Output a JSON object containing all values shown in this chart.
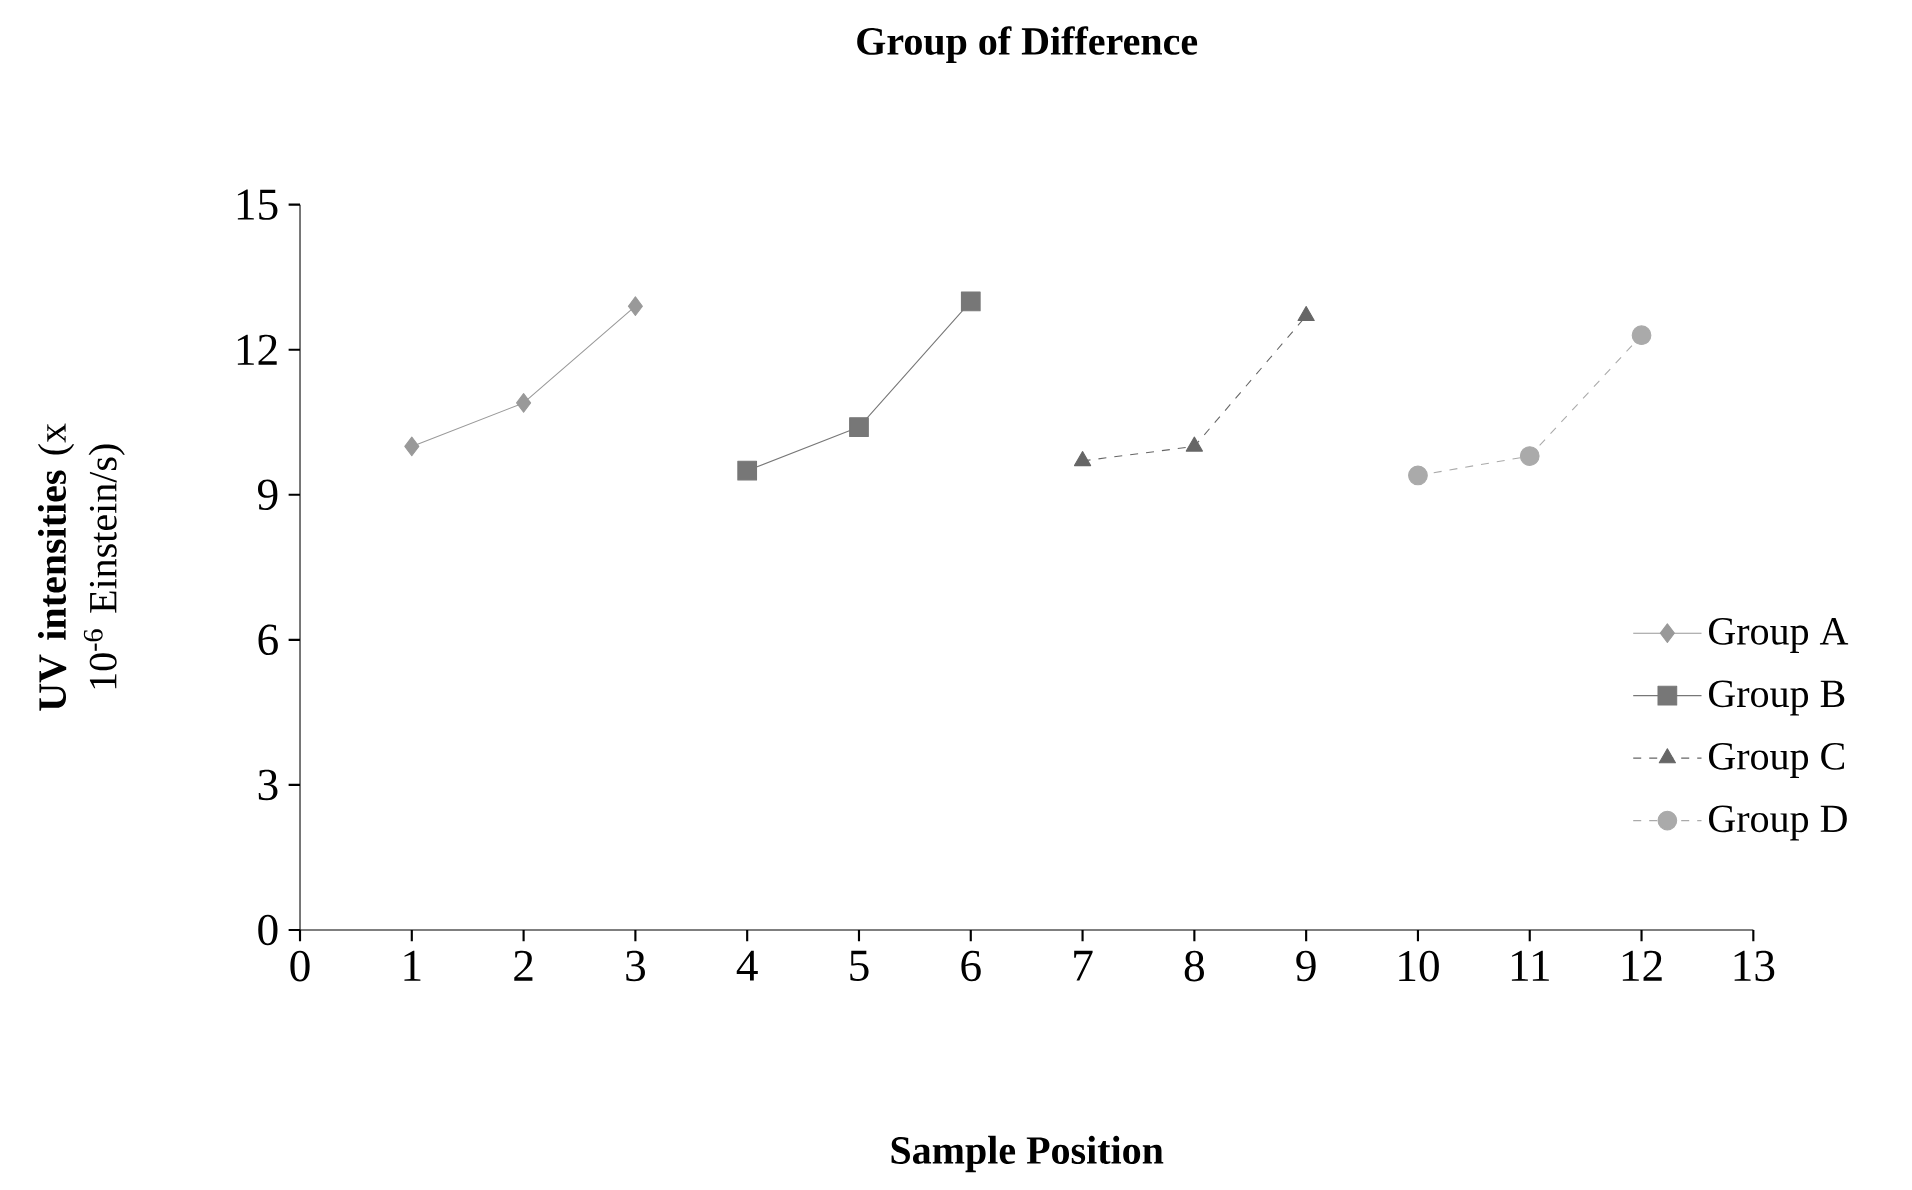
{
  "chart_data": {
    "type": "line",
    "title": "Group of Difference",
    "xlabel": "Sample Position",
    "ylabel": "**UV intensities** (x 10$^{-6}$ Einstein/s)",
    "xlim": [
      0,
      13
    ],
    "xticks": [
      0,
      1,
      2,
      3,
      4,
      5,
      6,
      7,
      8,
      9,
      10,
      11,
      12,
      13
    ],
    "ylim": [
      0,
      15
    ],
    "yticks": [
      0,
      3,
      6,
      9,
      12,
      15
    ],
    "grid": false,
    "legend": "right",
    "series": [
      {
        "name": "Group A",
        "color": "#999999",
        "marker": "diamond",
        "line_style": "solid",
        "x": [
          1,
          2,
          3
        ],
        "values": [
          10.0,
          10.9,
          12.9
        ]
      },
      {
        "name": "Group B",
        "color": "#777777",
        "marker": "square",
        "line_style": "solid",
        "x": [
          4,
          5,
          6
        ],
        "values": [
          9.5,
          10.4,
          13.0
        ]
      },
      {
        "name": "Group C",
        "color": "#666666",
        "marker": "triangle",
        "line_style": "dashed",
        "x": [
          7,
          8,
          9
        ],
        "values": [
          9.7,
          10.0,
          12.7
        ]
      },
      {
        "name": "Group D",
        "color": "#aaaaaa",
        "marker": "circle",
        "line_style": "dashed",
        "x": [
          10,
          11,
          12
        ],
        "values": [
          9.4,
          9.8,
          12.3
        ]
      }
    ]
  }
}
